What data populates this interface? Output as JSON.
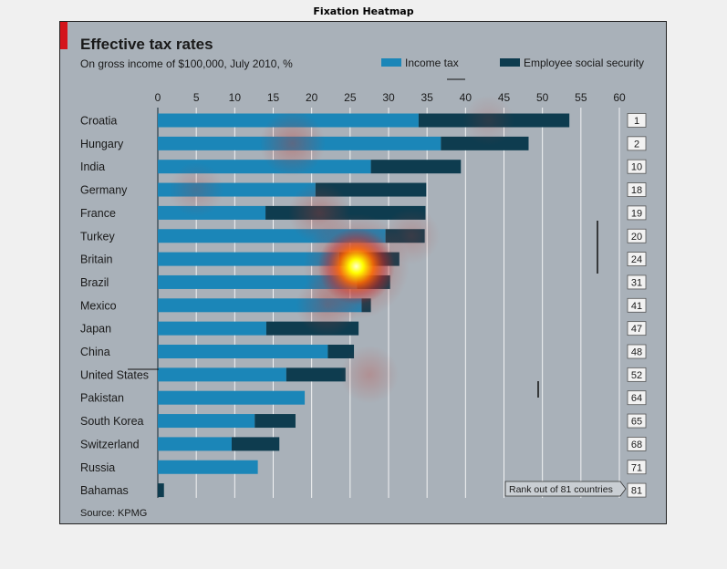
{
  "figure": {
    "title": "Fixation Heatmap"
  },
  "chart_data": {
    "type": "bar",
    "orientation": "horizontal",
    "stacked": true,
    "title": "Effective tax rates",
    "subtitle": "On gross income of $100,000, July 2010, %",
    "source": "Source: KPMG",
    "xlim": [
      0,
      60
    ],
    "xticks": [
      0,
      5,
      10,
      15,
      20,
      25,
      30,
      35,
      40,
      45,
      50,
      55,
      60
    ],
    "grid": true,
    "legend_position": "top-right",
    "categories": [
      "Croatia",
      "Hungary",
      "India",
      "Germany",
      "France",
      "Turkey",
      "Britain",
      "Brazil",
      "Mexico",
      "Japan",
      "China",
      "United States",
      "Pakistan",
      "South Korea",
      "Switzerland",
      "Russia",
      "Bahamas"
    ],
    "series": [
      {
        "name": "Income tax",
        "color": "#1b86b8",
        "values": [
          33.9,
          36.8,
          27.7,
          20.5,
          14.0,
          29.6,
          23.6,
          25.9,
          26.5,
          14.1,
          22.1,
          16.7,
          19.1,
          12.6,
          9.6,
          13.0,
          0
        ]
      },
      {
        "name": "Employee social security",
        "color": "#0e3c4f",
        "values": [
          19.6,
          11.4,
          11.7,
          14.4,
          20.8,
          5.1,
          7.8,
          4.3,
          1.2,
          12.0,
          3.4,
          7.7,
          0,
          5.3,
          6.2,
          0,
          0.8
        ]
      }
    ],
    "rank_label": "Rank out of 81 countries",
    "ranks": [
      "1",
      "2",
      "10",
      "18",
      "19",
      "20",
      "24",
      "31",
      "41",
      "47",
      "48",
      "52",
      "64",
      "65",
      "68",
      "71",
      "81"
    ]
  },
  "heatmap": {
    "fixations": [
      {
        "x_value": 25.8,
        "category": "Britain",
        "intensity": 1.0
      },
      {
        "x_value": 17.5,
        "category": "Hungary",
        "intensity": 0.35
      },
      {
        "x_value": 21.0,
        "category": "France",
        "intensity": 0.3
      },
      {
        "x_value": 27.5,
        "category": "United States",
        "intensity": 0.25
      },
      {
        "x_value": 22.0,
        "category": "Mexico",
        "intensity": 0.3
      },
      {
        "x_value": 5.0,
        "category": "Germany",
        "intensity": 0.2
      },
      {
        "x_value": 33.0,
        "category": "Turkey",
        "intensity": 0.22
      },
      {
        "x_value": 43.0,
        "category": "Croatia",
        "intensity": 0.15
      }
    ]
  }
}
